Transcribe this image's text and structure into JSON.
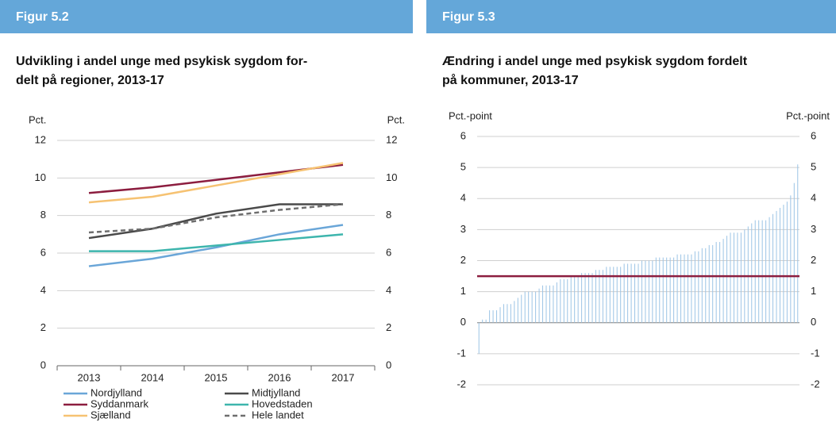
{
  "chart_data": [
    {
      "type": "line",
      "figure_label": "Figur 5.2",
      "title": [
        "Udvikling i andel unge med psykisk sygdom for-",
        "delt på regioner, 2013-17"
      ],
      "y_label": "Pct.",
      "y2_label": "Pct.",
      "categories": [
        "2013",
        "2014",
        "2015",
        "2016",
        "2017"
      ],
      "ylim": [
        0,
        12
      ],
      "yticks": [
        0,
        2,
        4,
        6,
        8,
        10,
        12
      ],
      "y2lim": [
        0,
        12
      ],
      "y2ticks": [
        0,
        2,
        4,
        6,
        8,
        10,
        12
      ],
      "grid": true,
      "series": [
        {
          "name": "Nordjylland",
          "color": "#6aa6d8",
          "values": [
            5.3,
            5.7,
            6.3,
            7.0,
            7.5
          ]
        },
        {
          "name": "Midtjylland",
          "color": "#4a4a4a",
          "values": [
            6.8,
            7.3,
            8.1,
            8.6,
            8.6
          ]
        },
        {
          "name": "Syddanmark",
          "color": "#8c1d3f",
          "values": [
            9.2,
            9.5,
            9.9,
            10.3,
            10.7
          ]
        },
        {
          "name": "Hovedstaden",
          "color": "#3db5ad",
          "values": [
            6.1,
            6.1,
            6.4,
            6.7,
            7.0
          ]
        },
        {
          "name": "Sjælland",
          "color": "#f6c272",
          "values": [
            8.7,
            9.0,
            9.6,
            10.2,
            10.8
          ]
        },
        {
          "name": "Hele landet",
          "color": "#6e6e6e",
          "dashed": true,
          "values": [
            7.1,
            7.3,
            7.9,
            8.3,
            8.6
          ]
        }
      ]
    },
    {
      "type": "bar",
      "figure_label": "Figur 5.3",
      "title": [
        "Ændring i andel unge med psykisk sygdom fordelt",
        "på kommuner, 2013-17"
      ],
      "y_label": "Pct.-point",
      "y2_label": "Pct.-point",
      "ylim": [
        -2,
        6
      ],
      "yticks": [
        -2,
        -1,
        0,
        1,
        2,
        3,
        4,
        5,
        6
      ],
      "y2lim": [
        -2,
        6
      ],
      "y2ticks": [
        -2,
        -1,
        0,
        1,
        2,
        3,
        4,
        5,
        6
      ],
      "grid": true,
      "color": "#9cc4e6",
      "reference_line": {
        "value": 1.5,
        "color": "#8c1d3f"
      },
      "categories": [
        null,
        null,
        null,
        null,
        null,
        null,
        null,
        null,
        null,
        null,
        null,
        null,
        null,
        null,
        null,
        null,
        null,
        null,
        null,
        null,
        null,
        null,
        null,
        null,
        null,
        null,
        null,
        null,
        null,
        null,
        null,
        null,
        null,
        null,
        null,
        null,
        null,
        null,
        null,
        null,
        null,
        null,
        null,
        null,
        null,
        null,
        null,
        null,
        null,
        null,
        null,
        null,
        null,
        null,
        null,
        null,
        null,
        null,
        null,
        null,
        null,
        null,
        null,
        null,
        null,
        null,
        null,
        null,
        null,
        null,
        null,
        null,
        null,
        null,
        null,
        null,
        null,
        null,
        null,
        null,
        null,
        null,
        null,
        null,
        null,
        null,
        null,
        null,
        null,
        null,
        null
      ],
      "values": [
        -1.0,
        0.1,
        0.1,
        0.4,
        0.4,
        0.4,
        0.5,
        0.6,
        0.6,
        0.6,
        0.7,
        0.8,
        0.9,
        1.0,
        1.0,
        1.0,
        1.0,
        1.1,
        1.2,
        1.2,
        1.2,
        1.2,
        1.3,
        1.4,
        1.4,
        1.4,
        1.5,
        1.5,
        1.5,
        1.6,
        1.6,
        1.6,
        1.6,
        1.7,
        1.7,
        1.7,
        1.8,
        1.8,
        1.8,
        1.8,
        1.8,
        1.9,
        1.9,
        1.9,
        1.9,
        1.9,
        2.0,
        2.0,
        2.0,
        2.0,
        2.1,
        2.1,
        2.1,
        2.1,
        2.1,
        2.1,
        2.2,
        2.2,
        2.2,
        2.2,
        2.2,
        2.3,
        2.3,
        2.4,
        2.4,
        2.5,
        2.5,
        2.6,
        2.6,
        2.7,
        2.8,
        2.9,
        2.9,
        2.9,
        2.9,
        3.0,
        3.1,
        3.2,
        3.3,
        3.3,
        3.3,
        3.3,
        3.4,
        3.5,
        3.6,
        3.7,
        3.8,
        3.9,
        4.1,
        4.5,
        5.1
      ]
    }
  ]
}
